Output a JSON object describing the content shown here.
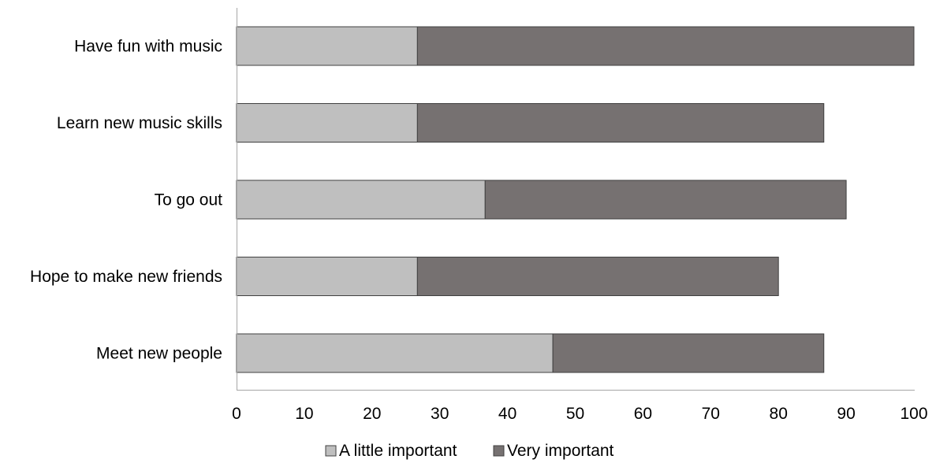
{
  "chart_data": {
    "type": "bar",
    "orientation": "horizontal",
    "stacked": true,
    "categories": [
      "Have fun with music",
      "Learn new music skills",
      "To go out",
      "Hope to make new friends",
      "Meet new people"
    ],
    "series": [
      {
        "name": "A little important",
        "values": [
          26.7,
          26.7,
          36.7,
          26.7,
          46.7
        ],
        "color": "#bfbfbf"
      },
      {
        "name": "Very important",
        "values": [
          73.3,
          60.0,
          53.3,
          53.3,
          40.0
        ],
        "color": "#767171"
      }
    ],
    "xlim": [
      0,
      100
    ],
    "x_ticks": [
      "0",
      "10",
      "20",
      "30",
      "40",
      "50",
      "60",
      "70",
      "80",
      "90",
      "100"
    ],
    "title": "",
    "xlabel": "",
    "ylabel": "",
    "grid": false,
    "legend_position": "bottom"
  }
}
